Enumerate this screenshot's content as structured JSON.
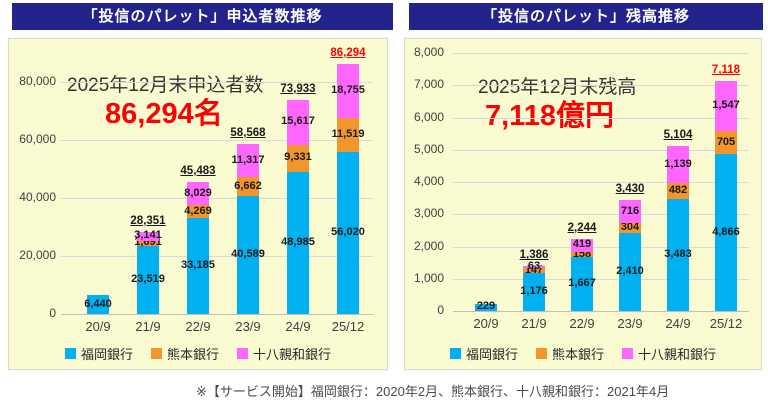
{
  "page": {
    "footnote": "※【サービス開始】福岡銀行：2020年2月、熊本銀行、十八親和銀行：2021年4月"
  },
  "colors": {
    "fukuoka_blue": "#00B0F0",
    "kumamoto_orange": "#F0962D",
    "juhachi_shinwa_magenta": "#FF66FF",
    "title_navy": "#23238C",
    "panel_yellow": "#FBFBD2",
    "emphasis_red": "#FF0000"
  },
  "chart_data": [
    {
      "id": "applicants",
      "type": "bar",
      "stacked": true,
      "title": "「投信のパレット」申込者数推移",
      "annotation": {
        "line1": "2025年12月末申込者数",
        "line2": "86,294名"
      },
      "categories": [
        "20/9",
        "21/9",
        "22/9",
        "23/9",
        "24/9",
        "25/12"
      ],
      "series": [
        {
          "name": "福岡銀行",
          "color_key": "fukuoka_blue",
          "values": [
            6440,
            23519,
            33185,
            40589,
            48985,
            56020
          ]
        },
        {
          "name": "熊本銀行",
          "color_key": "kumamoto_orange",
          "values": [
            0,
            1691,
            4269,
            6662,
            9331,
            11519
          ]
        },
        {
          "name": "十八親和銀行",
          "color_key": "juhachi_shinwa_magenta",
          "values": [
            0,
            3141,
            8029,
            11317,
            15617,
            18755
          ]
        }
      ],
      "totals": [
        null,
        28351,
        45483,
        58568,
        73933,
        86294
      ],
      "emphasis_category_index": 5,
      "ylim": [
        0,
        80000
      ],
      "ytick_step": 20000,
      "yticks": [
        "0",
        "20,000",
        "40,000",
        "60,000",
        "80,000"
      ],
      "grid": true,
      "legend_position": "bottom"
    },
    {
      "id": "balance",
      "type": "bar",
      "stacked": true,
      "title": "「投信のパレット」残高推移",
      "annotation": {
        "line1": "2025年12月末残高",
        "line2": "7,118億円"
      },
      "categories": [
        "20/9",
        "21/9",
        "22/9",
        "23/9",
        "24/9",
        "25/12"
      ],
      "series": [
        {
          "name": "福岡銀行",
          "color_key": "fukuoka_blue",
          "values": [
            229,
            1176,
            1667,
            2410,
            3483,
            4866
          ]
        },
        {
          "name": "熊本銀行",
          "color_key": "kumamoto_orange",
          "values": [
            0,
            147,
            158,
            304,
            482,
            705
          ]
        },
        {
          "name": "十八親和銀行",
          "color_key": "juhachi_shinwa_magenta",
          "values": [
            0,
            63,
            419,
            716,
            1139,
            1547
          ]
        }
      ],
      "totals": [
        null,
        1386,
        2244,
        3430,
        5104,
        7118
      ],
      "emphasis_category_index": 5,
      "ylim": [
        0,
        8000
      ],
      "ytick_step": 1000,
      "yticks": [
        "0",
        "1,000",
        "2,000",
        "3,000",
        "4,000",
        "5,000",
        "6,000",
        "7,000",
        "8,000"
      ],
      "grid": true,
      "legend_position": "bottom"
    }
  ]
}
